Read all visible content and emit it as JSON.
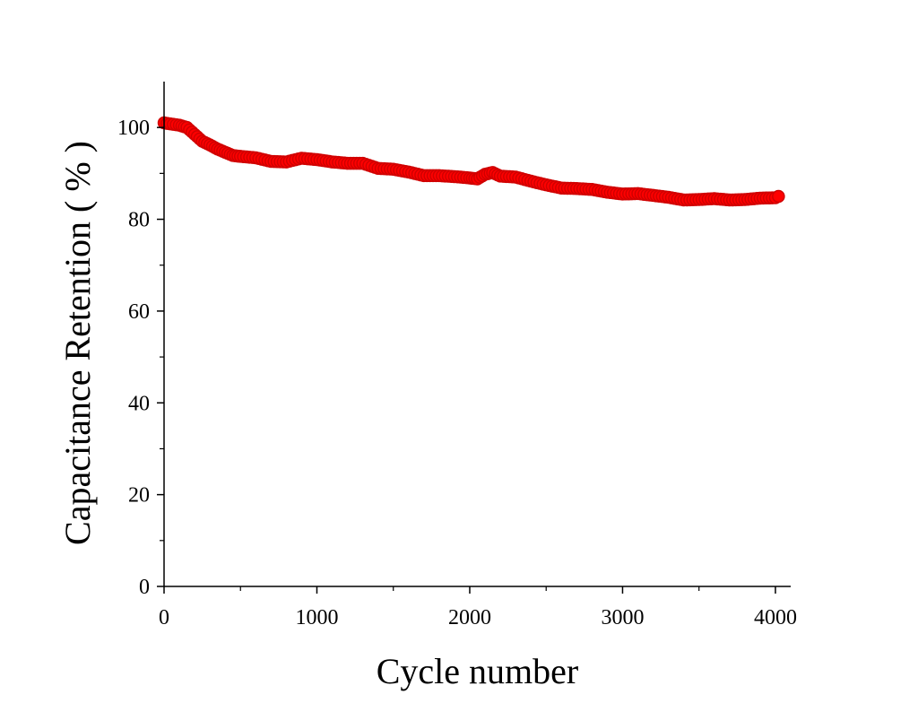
{
  "chart_data": {
    "type": "scatter",
    "title": "",
    "xlabel": "Cycle number",
    "ylabel": "Capacitance Retention ( % )",
    "xlim": [
      0,
      4100
    ],
    "ylim": [
      0,
      110
    ],
    "x_ticks": [
      0,
      1000,
      2000,
      3000,
      4000
    ],
    "y_ticks": [
      0,
      20,
      40,
      60,
      80,
      100
    ],
    "x_tick_labels": [
      "0",
      "1000",
      "2000",
      "3000",
      "4000"
    ],
    "y_tick_labels": [
      "0",
      "20",
      "40",
      "60",
      "80",
      "100"
    ],
    "grid": false,
    "legend": "none",
    "marker_color": "#ff0000",
    "marker_edge_color": "#d00000",
    "series": [
      {
        "x": [
          0,
          100,
          150,
          200,
          250,
          300,
          350,
          400,
          450,
          500,
          600,
          700,
          800,
          900,
          1000,
          1100,
          1200,
          1300,
          1400,
          1500,
          1600,
          1700,
          1800,
          1900,
          2000,
          2050,
          2100,
          2150,
          2200,
          2300,
          2400,
          2500,
          2600,
          2700,
          2800,
          2900,
          3000,
          3100,
          3200,
          3300,
          3400,
          3500,
          3600,
          3700,
          3800,
          3900,
          4000,
          4020
        ],
        "y": [
          101.0,
          100.5,
          100.0,
          98.5,
          97.0,
          96.2,
          95.3,
          94.6,
          93.9,
          93.7,
          93.4,
          92.6,
          92.5,
          93.3,
          93.0,
          92.5,
          92.2,
          92.2,
          91.1,
          90.9,
          90.3,
          89.5,
          89.5,
          89.3,
          89.0,
          88.8,
          89.8,
          90.2,
          89.4,
          89.2,
          88.3,
          87.5,
          86.8,
          86.7,
          86.5,
          85.9,
          85.5,
          85.6,
          85.2,
          84.8,
          84.2,
          84.3,
          84.5,
          84.2,
          84.3,
          84.6,
          84.7,
          85.0
        ]
      }
    ]
  }
}
